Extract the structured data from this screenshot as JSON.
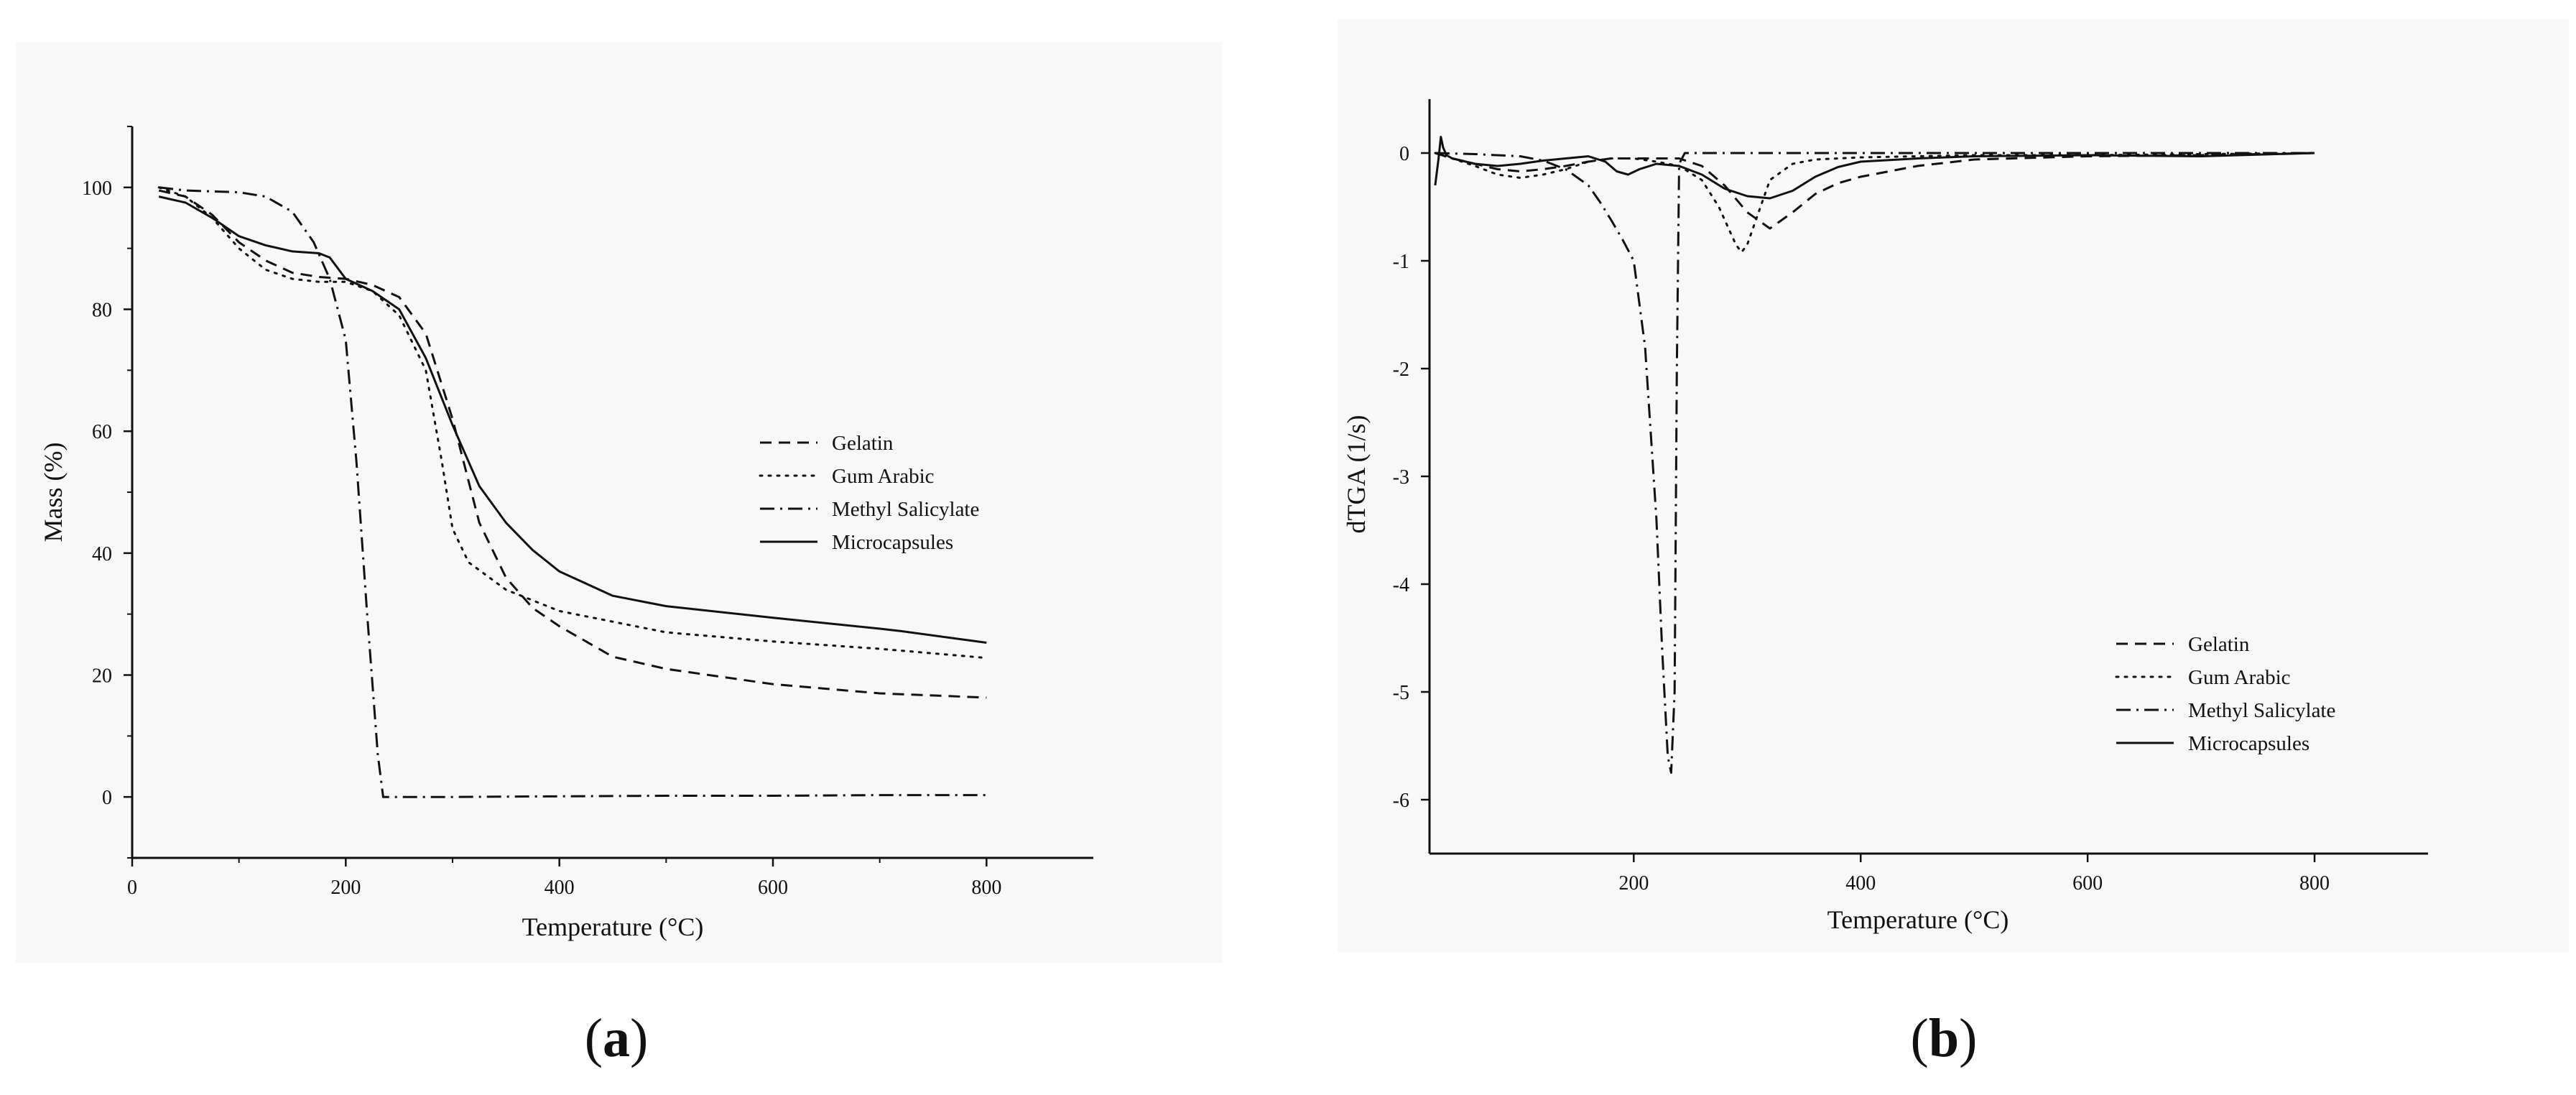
{
  "colors": {
    "background": "#ffffff",
    "panel_bg": "#f8f8f8",
    "ink": "#111111"
  },
  "panels": [
    {
      "label_open": "(",
      "label_letter": "a",
      "label_close": ")"
    },
    {
      "label_open": "(",
      "label_letter": "b",
      "label_close": ")"
    }
  ],
  "chart_data": [
    {
      "type": "line",
      "title": "",
      "xlabel": "Temperature (°C)",
      "ylabel": "Mass (%)",
      "xlim": [
        0,
        900
      ],
      "ylim": [
        -10,
        110
      ],
      "xticks": [
        0,
        200,
        400,
        600,
        800
      ],
      "yticks": [
        0,
        20,
        40,
        60,
        80,
        100
      ],
      "x_tick_labels": [
        "0",
        "200",
        "400",
        "600",
        "800"
      ],
      "y_tick_labels": [
        "0",
        "20",
        "40",
        "60",
        "80",
        "100"
      ],
      "grid": false,
      "legend_position": "right",
      "series": [
        {
          "name": "Gelatin",
          "style": "dashed",
          "x": [
            25,
            50,
            75,
            100,
            125,
            150,
            175,
            200,
            225,
            250,
            275,
            300,
            325,
            350,
            375,
            400,
            450,
            500,
            600,
            700,
            800
          ],
          "y": [
            99.5,
            98.5,
            95.5,
            91,
            88,
            86,
            85.3,
            85,
            84,
            82,
            76,
            62,
            45,
            36,
            31,
            28,
            23,
            21,
            18.5,
            17,
            16.3
          ]
        },
        {
          "name": "Gum Arabic",
          "style": "dotted",
          "x": [
            25,
            50,
            75,
            100,
            125,
            150,
            175,
            200,
            225,
            250,
            275,
            290,
            300,
            315,
            350,
            400,
            500,
            600,
            700,
            800
          ],
          "y": [
            100,
            98.5,
            95,
            90,
            86.5,
            85,
            84.5,
            84.5,
            83,
            79,
            70,
            55,
            44,
            38.5,
            34,
            30.5,
            27,
            25.5,
            24.3,
            22.8
          ]
        },
        {
          "name": "Methyl Salicylate",
          "style": "dash-dot",
          "x": [
            25,
            50,
            100,
            125,
            150,
            170,
            185,
            200,
            210,
            220,
            230,
            235,
            240,
            300,
            400,
            500,
            600,
            700,
            800
          ],
          "y": [
            100,
            99.5,
            99.2,
            98.5,
            96,
            91,
            85,
            75,
            55,
            30,
            7,
            0,
            0,
            0,
            0.1,
            0.2,
            0.2,
            0.3,
            0.3
          ]
        },
        {
          "name": "Microcapsules",
          "style": "solid",
          "x": [
            25,
            50,
            75,
            100,
            125,
            150,
            175,
            185,
            200,
            225,
            250,
            275,
            300,
            325,
            350,
            375,
            400,
            450,
            500,
            600,
            700,
            720,
            800
          ],
          "y": [
            98.5,
            97.5,
            95,
            92,
            90.5,
            89.5,
            89.2,
            88.5,
            85,
            83,
            80,
            72,
            61,
            51,
            45,
            40.5,
            37,
            33,
            31.3,
            29.4,
            27.6,
            27.2,
            25.3
          ]
        }
      ]
    },
    {
      "type": "line",
      "title": "",
      "xlabel": "Temperature (°C)",
      "ylabel": "dTGA (1/s)",
      "xlim": [
        20,
        900
      ],
      "ylim": [
        -6.5,
        0.5
      ],
      "xticks": [
        200,
        400,
        600,
        800
      ],
      "yticks": [
        0,
        -1,
        -2,
        -3,
        -4,
        -5,
        -6
      ],
      "x_tick_labels": [
        "200",
        "400",
        "600",
        "800"
      ],
      "y_tick_labels": [
        "0",
        "-1",
        "-2",
        "-3",
        "-4",
        "-5",
        "-6"
      ],
      "grid": false,
      "legend_position": "bottom-right",
      "series": [
        {
          "name": "Gelatin",
          "style": "dashed",
          "x": [
            25,
            40,
            60,
            80,
            100,
            120,
            140,
            160,
            180,
            200,
            220,
            240,
            260,
            280,
            300,
            320,
            340,
            360,
            380,
            400,
            450,
            500,
            600,
            700,
            800
          ],
          "y": [
            0,
            -0.05,
            -0.1,
            -0.15,
            -0.17,
            -0.15,
            -0.12,
            -0.08,
            -0.05,
            -0.05,
            -0.05,
            -0.05,
            -0.12,
            -0.3,
            -0.55,
            -0.7,
            -0.55,
            -0.38,
            -0.28,
            -0.22,
            -0.12,
            -0.06,
            -0.03,
            -0.02,
            0
          ]
        },
        {
          "name": "Gum Arabic",
          "style": "dotted",
          "x": [
            25,
            40,
            60,
            80,
            100,
            120,
            140,
            160,
            180,
            200,
            220,
            240,
            260,
            275,
            290,
            295,
            300,
            310,
            320,
            340,
            360,
            400,
            500,
            600,
            700,
            800
          ],
          "y": [
            0,
            -0.05,
            -0.12,
            -0.2,
            -0.23,
            -0.2,
            -0.15,
            -0.08,
            -0.05,
            -0.05,
            -0.08,
            -0.12,
            -0.25,
            -0.5,
            -0.85,
            -0.92,
            -0.85,
            -0.55,
            -0.25,
            -0.1,
            -0.06,
            -0.04,
            -0.02,
            -0.02,
            -0.01,
            0
          ]
        },
        {
          "name": "Methyl Salicylate",
          "style": "dash-dot",
          "x": [
            25,
            60,
            100,
            120,
            140,
            160,
            170,
            180,
            190,
            200,
            210,
            220,
            225,
            230,
            233,
            236,
            238,
            240,
            245,
            260,
            300,
            400,
            500,
            600,
            700,
            800
          ],
          "y": [
            0,
            -0.01,
            -0.03,
            -0.07,
            -0.15,
            -0.3,
            -0.45,
            -0.62,
            -0.8,
            -1.0,
            -1.8,
            -3.4,
            -4.6,
            -5.6,
            -5.75,
            -5.0,
            -2.0,
            -0.1,
            0,
            0,
            0,
            0,
            0,
            0,
            0,
            0
          ]
        },
        {
          "name": "Microcapsules",
          "style": "solid",
          "x": [
            25,
            28,
            30,
            32,
            35,
            40,
            60,
            80,
            100,
            120,
            140,
            160,
            175,
            185,
            195,
            205,
            220,
            240,
            260,
            280,
            300,
            320,
            340,
            360,
            380,
            400,
            450,
            500,
            600,
            700,
            800
          ],
          "y": [
            -0.3,
            -0.05,
            0.15,
            0.05,
            -0.02,
            -0.05,
            -0.1,
            -0.12,
            -0.1,
            -0.07,
            -0.05,
            -0.03,
            -0.08,
            -0.17,
            -0.2,
            -0.15,
            -0.1,
            -0.12,
            -0.2,
            -0.33,
            -0.4,
            -0.42,
            -0.35,
            -0.22,
            -0.13,
            -0.08,
            -0.05,
            -0.03,
            -0.02,
            -0.03,
            0
          ]
        }
      ]
    }
  ]
}
